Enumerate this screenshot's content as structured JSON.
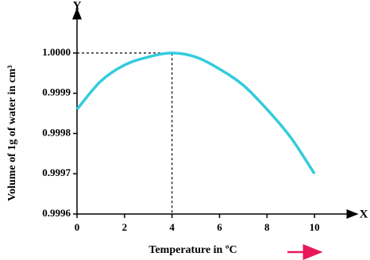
{
  "chart_data": {
    "type": "line",
    "x_label": "Temperature in ºC",
    "y_label": "Volume of 1g of water in cm³",
    "x_axis_name": "X",
    "y_axis_name": "Y",
    "x": [
      0,
      1,
      2,
      3,
      4,
      5,
      6,
      7,
      8,
      9,
      10
    ],
    "values": [
      0.99986,
      0.99993,
      0.99997,
      0.99999,
      1.0,
      0.99999,
      0.99996,
      0.99992,
      0.99986,
      0.99979,
      0.9997
    ],
    "color": "#33ccdd",
    "xlim": [
      0,
      11.6
    ],
    "xticks": [
      0,
      2,
      4,
      6,
      8,
      10
    ],
    "ylim": [
      0.9996,
      1.00011
    ],
    "yticks": [
      0.9996,
      0.9997,
      0.9998,
      0.9999,
      {
        "value": 1,
        "label": "1.0000"
      }
    ],
    "reference_index": 4
  }
}
